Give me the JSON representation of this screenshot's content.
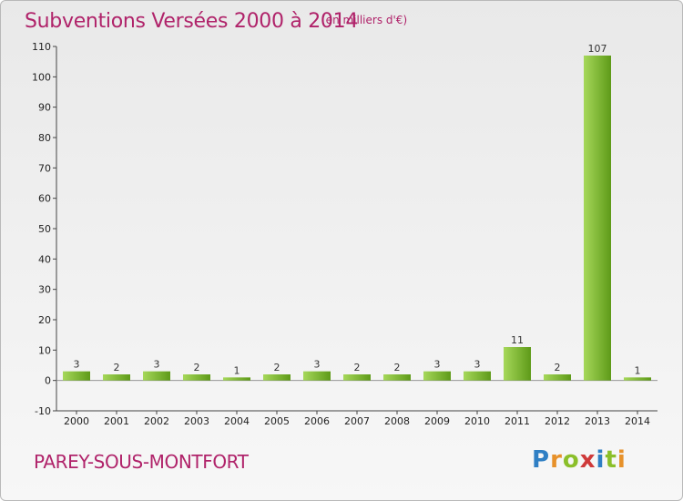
{
  "header": {
    "title": "Subventions Versées 2000 à 2014",
    "subtitle": "(en milliers d'€)"
  },
  "footer": {
    "place": "PAREY-SOUS-MONTFORT",
    "logo_letters": [
      "P",
      "r",
      "o",
      "x",
      "i",
      "t",
      "i"
    ],
    "logo_colors": [
      "#2f7fc4",
      "#e7912a",
      "#8bbf2a",
      "#cf3a3a",
      "#2f7fc4",
      "#8bbf2a",
      "#e7912a"
    ]
  },
  "colors": {
    "bar_light": "#a6d85a",
    "bar_dark": "#5e9a18",
    "axis": "#444444",
    "text_accent": "#b0236a"
  },
  "chart_data": {
    "type": "bar",
    "categories": [
      "2000",
      "2001",
      "2002",
      "2003",
      "2004",
      "2005",
      "2006",
      "2007",
      "2008",
      "2009",
      "2010",
      "2011",
      "2012",
      "2013",
      "2014"
    ],
    "values": [
      3,
      2,
      3,
      2,
      1,
      2,
      3,
      2,
      2,
      3,
      3,
      11,
      2,
      107,
      1
    ],
    "title": "Subventions Versées 2000 à 2014",
    "ylim": [
      -10,
      110
    ],
    "yticks": [
      -10,
      0,
      10,
      20,
      30,
      40,
      50,
      60,
      70,
      80,
      90,
      100,
      110
    ],
    "grid": false,
    "data_labels": true
  }
}
